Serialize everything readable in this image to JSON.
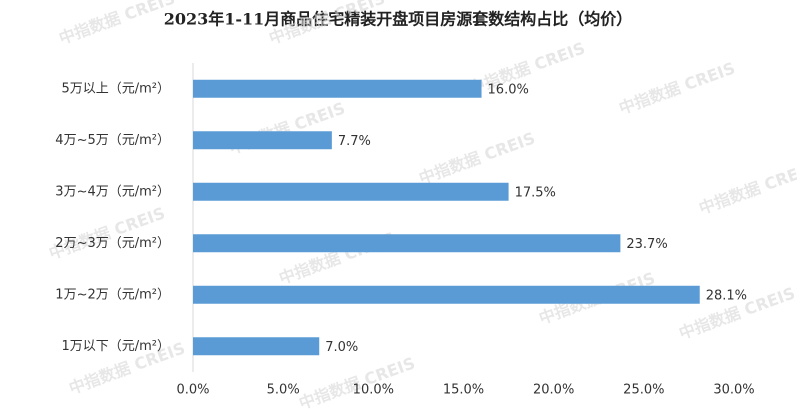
{
  "chart_data": {
    "type": "barh",
    "title": "2023年1-11月商品住宅精装开盘项目房源套数结构占比（均价）",
    "watermark": "中指数据 CREIS",
    "categories": [
      "5万以上（元/m²）",
      "4万~5万（元/m²）",
      "3万~4万（元/m²）",
      "2万~3万（元/m²）",
      "1万~2万（元/m²）",
      "1万以下（元/m²）"
    ],
    "values": [
      16.0,
      7.7,
      17.5,
      23.7,
      28.1,
      7.0
    ],
    "value_labels": [
      "16.0%",
      "7.7%",
      "17.5%",
      "23.7%",
      "28.1%",
      "7.0%"
    ],
    "color": "#5b9bd5",
    "xlim": [
      0,
      30
    ],
    "xticks": [
      {
        "value": 0,
        "label": "0.0%"
      },
      {
        "value": 5,
        "label": "5.0%"
      },
      {
        "value": 10,
        "label": "10.0%"
      },
      {
        "value": 15,
        "label": "15.0%"
      },
      {
        "value": 20,
        "label": "20.0%"
      },
      {
        "value": 25,
        "label": "25.0%"
      },
      {
        "value": 30,
        "label": "30.0%"
      }
    ]
  }
}
